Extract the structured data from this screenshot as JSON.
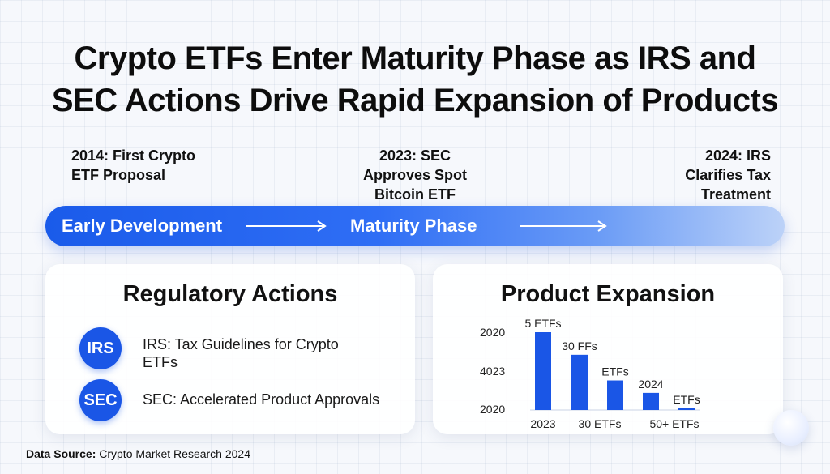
{
  "title": {
    "line1": "Crypto ETFs Enter Maturity Phase as IRS and",
    "line2": "SEC Actions Drive Rapid Expansion of Products"
  },
  "milestones": [
    {
      "lines": [
        "2014: First Crypto",
        "ETF Proposal"
      ]
    },
    {
      "lines": [
        "2023: SEC",
        "Approves Spot",
        "Bitcoin ETF"
      ]
    },
    {
      "lines": [
        "2024: IRS",
        "Clarifies Tax",
        "Treatment"
      ]
    }
  ],
  "phases": {
    "early": "Early Development",
    "maturity": "Maturity Phase"
  },
  "regulatory": {
    "title": "Regulatory Actions",
    "items": [
      {
        "badge": "IRS",
        "lines": [
          "IRS: Tax Guidelines for Crypto",
          "ETFs"
        ]
      },
      {
        "badge": "SEC",
        "lines": [
          "SEC: Accelerated Product Approvals"
        ]
      }
    ]
  },
  "product": {
    "title": "Product Expansion"
  },
  "chart_data": {
    "type": "bar",
    "title": "Product Expansion",
    "y_tick_labels": [
      "2020",
      "4023",
      "2020"
    ],
    "x_tick_labels": [
      "2023",
      "30 ETFs",
      "50+ ETFs"
    ],
    "values": [
      100,
      71,
      38,
      22,
      2
    ],
    "data_labels": [
      "5 ETFs",
      "30 FFs",
      "ETFs",
      "2024",
      "ETFs"
    ],
    "color": "#1a56e6",
    "ylim": [
      0,
      100
    ],
    "note": "Bar values are relative heights estimated from the figure (tallest = 100); axis labels as printed."
  },
  "footer": {
    "label": "Data Source:",
    "text": "Crypto Market Research 2024"
  },
  "colors": {
    "accent": "#1a56e6",
    "banner_start": "#1a5bea",
    "banner_end": "#bcd2f8"
  }
}
